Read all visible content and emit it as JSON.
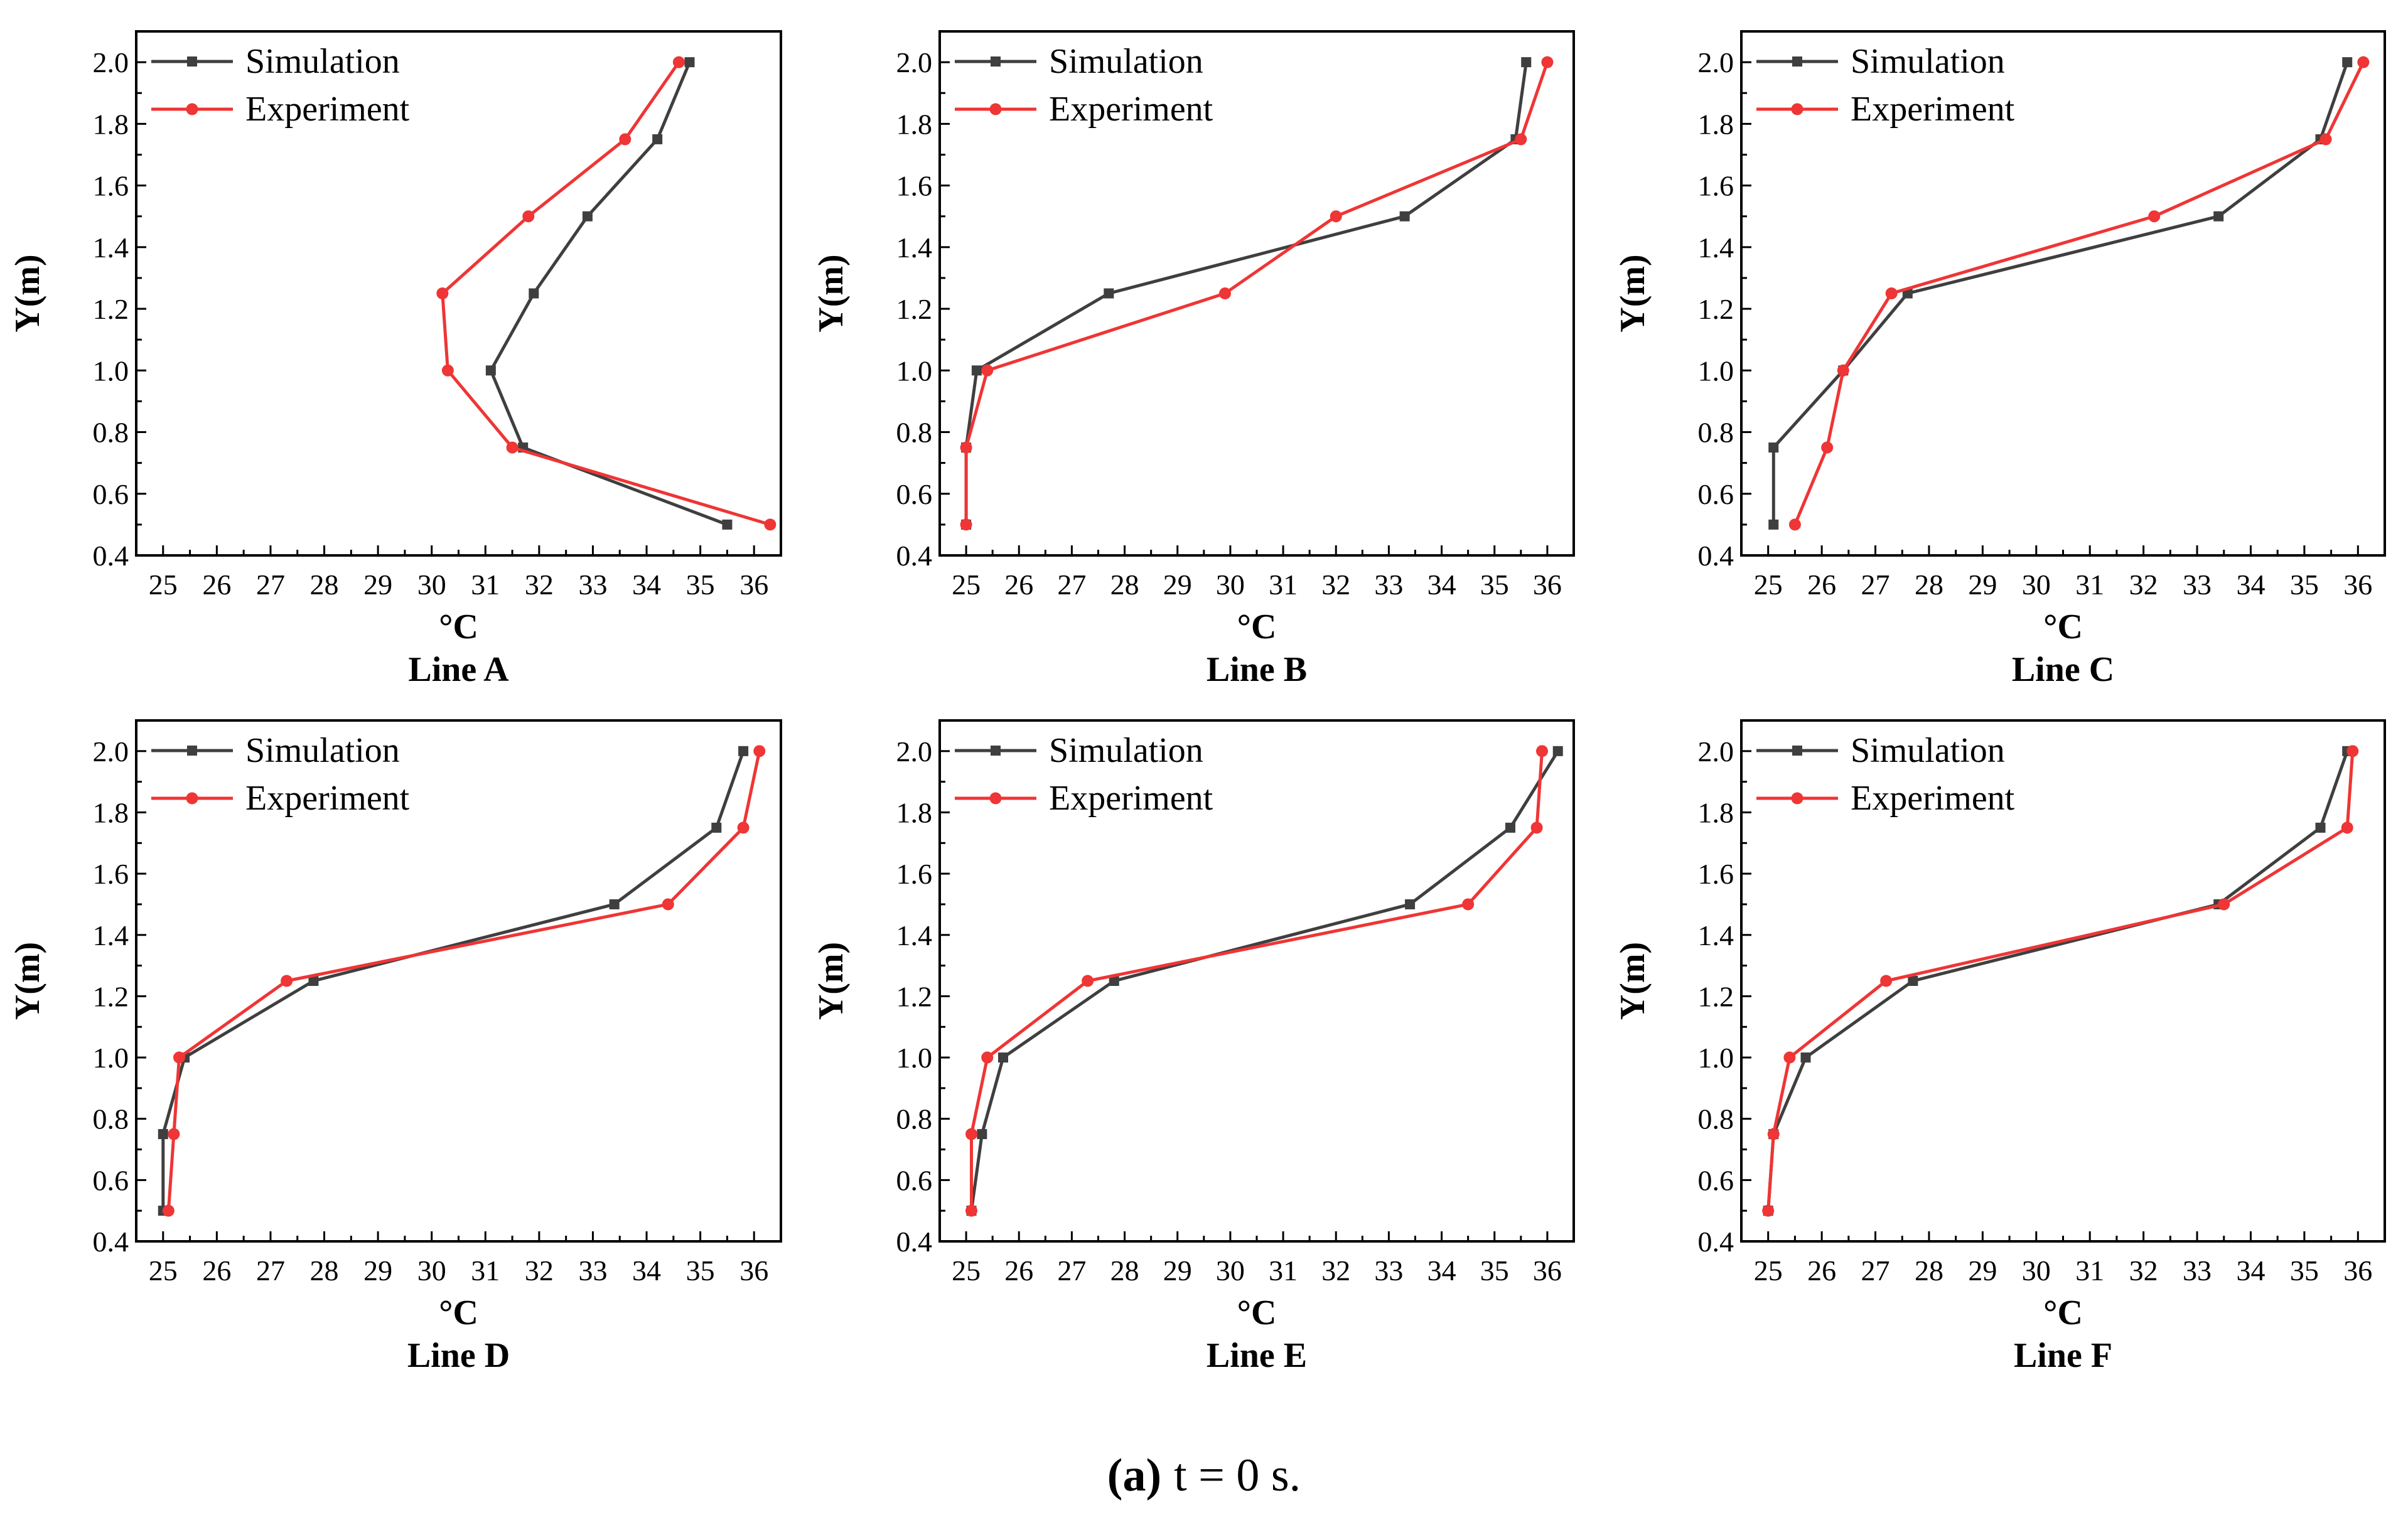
{
  "figure": {
    "caption_label": "(a)",
    "caption_text": "t = 0 s.",
    "colors": {
      "simulation": "#3f3f3f",
      "experiment": "#ef3535",
      "axis": "#000000"
    },
    "legend": {
      "simulation": "Simulation",
      "experiment": "Experiment"
    }
  },
  "chart_data": [
    {
      "type": "line",
      "title": "Line A",
      "xlabel": "°C",
      "ylabel": "Y(m)",
      "xlim": [
        24.5,
        36.5
      ],
      "ylim": [
        0.4,
        2.1
      ],
      "xticks": [
        25,
        26,
        27,
        28,
        29,
        30,
        31,
        32,
        33,
        34,
        35,
        36
      ],
      "yticks": [
        "0.4",
        "0.6",
        "0.8",
        "1.0",
        "1.2",
        "1.4",
        "1.6",
        "1.8",
        "2.0"
      ],
      "legend_position": "top-left",
      "series": [
        {
          "name": "Simulation",
          "marker": "square",
          "x": [
            35.5,
            31.7,
            31.1,
            31.9,
            32.9,
            34.2,
            34.8
          ],
          "y": [
            0.5,
            0.75,
            1.0,
            1.25,
            1.5,
            1.75,
            2.0
          ]
        },
        {
          "name": "Experiment",
          "marker": "circle",
          "x": [
            36.3,
            31.5,
            30.3,
            30.2,
            31.8,
            33.6,
            34.6
          ],
          "y": [
            0.5,
            0.75,
            1.0,
            1.25,
            1.5,
            1.75,
            2.0
          ]
        }
      ]
    },
    {
      "type": "line",
      "title": "Line B",
      "xlabel": "°C",
      "ylabel": "Y(m)",
      "xlim": [
        24.5,
        36.5
      ],
      "ylim": [
        0.4,
        2.1
      ],
      "xticks": [
        25,
        26,
        27,
        28,
        29,
        30,
        31,
        32,
        33,
        34,
        35,
        36
      ],
      "yticks": [
        "0.4",
        "0.6",
        "0.8",
        "1.0",
        "1.2",
        "1.4",
        "1.6",
        "1.8",
        "2.0"
      ],
      "legend_position": "top-left",
      "series": [
        {
          "name": "Simulation",
          "marker": "square",
          "x": [
            25.0,
            25.0,
            25.2,
            27.7,
            33.3,
            35.4,
            35.6
          ],
          "y": [
            0.5,
            0.75,
            1.0,
            1.25,
            1.5,
            1.75,
            2.0
          ]
        },
        {
          "name": "Experiment",
          "marker": "circle",
          "x": [
            25.0,
            25.0,
            25.4,
            29.9,
            32.0,
            35.5,
            36.0
          ],
          "y": [
            0.5,
            0.75,
            1.0,
            1.25,
            1.5,
            1.75,
            2.0
          ]
        }
      ]
    },
    {
      "type": "line",
      "title": "Line C",
      "xlabel": "°C",
      "ylabel": "Y(m)",
      "xlim": [
        24.5,
        36.5
      ],
      "ylim": [
        0.4,
        2.1
      ],
      "xticks": [
        25,
        26,
        27,
        28,
        29,
        30,
        31,
        32,
        33,
        34,
        35,
        36
      ],
      "yticks": [
        "0.4",
        "0.6",
        "0.8",
        "1.0",
        "1.2",
        "1.4",
        "1.6",
        "1.8",
        "2.0"
      ],
      "legend_position": "top-left",
      "series": [
        {
          "name": "Simulation",
          "marker": "square",
          "x": [
            25.1,
            25.1,
            26.4,
            27.6,
            33.4,
            35.3,
            35.8
          ],
          "y": [
            0.5,
            0.75,
            1.0,
            1.25,
            1.5,
            1.75,
            2.0
          ]
        },
        {
          "name": "Experiment",
          "marker": "circle",
          "x": [
            25.5,
            26.1,
            26.4,
            27.3,
            32.2,
            35.4,
            36.1
          ],
          "y": [
            0.5,
            0.75,
            1.0,
            1.25,
            1.5,
            1.75,
            2.0
          ]
        }
      ]
    },
    {
      "type": "line",
      "title": "Line D",
      "xlabel": "°C",
      "ylabel": "Y(m)",
      "xlim": [
        24.5,
        36.5
      ],
      "ylim": [
        0.4,
        2.1
      ],
      "xticks": [
        25,
        26,
        27,
        28,
        29,
        30,
        31,
        32,
        33,
        34,
        35,
        36
      ],
      "yticks": [
        "0.4",
        "0.6",
        "0.8",
        "1.0",
        "1.2",
        "1.4",
        "1.6",
        "1.8",
        "2.0"
      ],
      "legend_position": "top-left",
      "series": [
        {
          "name": "Simulation",
          "marker": "square",
          "x": [
            25.0,
            25.0,
            25.4,
            27.8,
            33.4,
            35.3,
            35.8
          ],
          "y": [
            0.5,
            0.75,
            1.0,
            1.25,
            1.5,
            1.75,
            2.0
          ]
        },
        {
          "name": "Experiment",
          "marker": "circle",
          "x": [
            25.1,
            25.2,
            25.3,
            27.3,
            34.4,
            35.8,
            36.1
          ],
          "y": [
            0.5,
            0.75,
            1.0,
            1.25,
            1.5,
            1.75,
            2.0
          ]
        }
      ]
    },
    {
      "type": "line",
      "title": "Line E",
      "xlabel": "°C",
      "ylabel": "Y(m)",
      "xlim": [
        24.5,
        36.5
      ],
      "ylim": [
        0.4,
        2.1
      ],
      "xticks": [
        25,
        26,
        27,
        28,
        29,
        30,
        31,
        32,
        33,
        34,
        35,
        36
      ],
      "yticks": [
        "0.4",
        "0.6",
        "0.8",
        "1.0",
        "1.2",
        "1.4",
        "1.6",
        "1.8",
        "2.0"
      ],
      "legend_position": "top-left",
      "series": [
        {
          "name": "Simulation",
          "marker": "square",
          "x": [
            25.1,
            25.3,
            25.7,
            27.8,
            33.4,
            35.3,
            36.2
          ],
          "y": [
            0.5,
            0.75,
            1.0,
            1.25,
            1.5,
            1.75,
            2.0
          ]
        },
        {
          "name": "Experiment",
          "marker": "circle",
          "x": [
            25.1,
            25.1,
            25.4,
            27.3,
            34.5,
            35.8,
            35.9
          ],
          "y": [
            0.5,
            0.75,
            1.0,
            1.25,
            1.5,
            1.75,
            2.0
          ]
        }
      ]
    },
    {
      "type": "line",
      "title": "Line F",
      "xlabel": "°C",
      "ylabel": "Y(m)",
      "xlim": [
        24.5,
        36.5
      ],
      "ylim": [
        0.4,
        2.1
      ],
      "xticks": [
        25,
        26,
        27,
        28,
        29,
        30,
        31,
        32,
        33,
        34,
        35,
        36
      ],
      "yticks": [
        "0.4",
        "0.6",
        "0.8",
        "1.0",
        "1.2",
        "1.4",
        "1.6",
        "1.8",
        "2.0"
      ],
      "legend_position": "top-left",
      "series": [
        {
          "name": "Simulation",
          "marker": "square",
          "x": [
            25.0,
            25.1,
            25.7,
            27.7,
            33.4,
            35.3,
            35.8
          ],
          "y": [
            0.5,
            0.75,
            1.0,
            1.25,
            1.5,
            1.75,
            2.0
          ]
        },
        {
          "name": "Experiment",
          "marker": "circle",
          "x": [
            25.0,
            25.1,
            25.4,
            27.2,
            33.5,
            35.8,
            35.9
          ],
          "y": [
            0.5,
            0.75,
            1.0,
            1.25,
            1.5,
            1.75,
            2.0
          ]
        }
      ]
    }
  ]
}
